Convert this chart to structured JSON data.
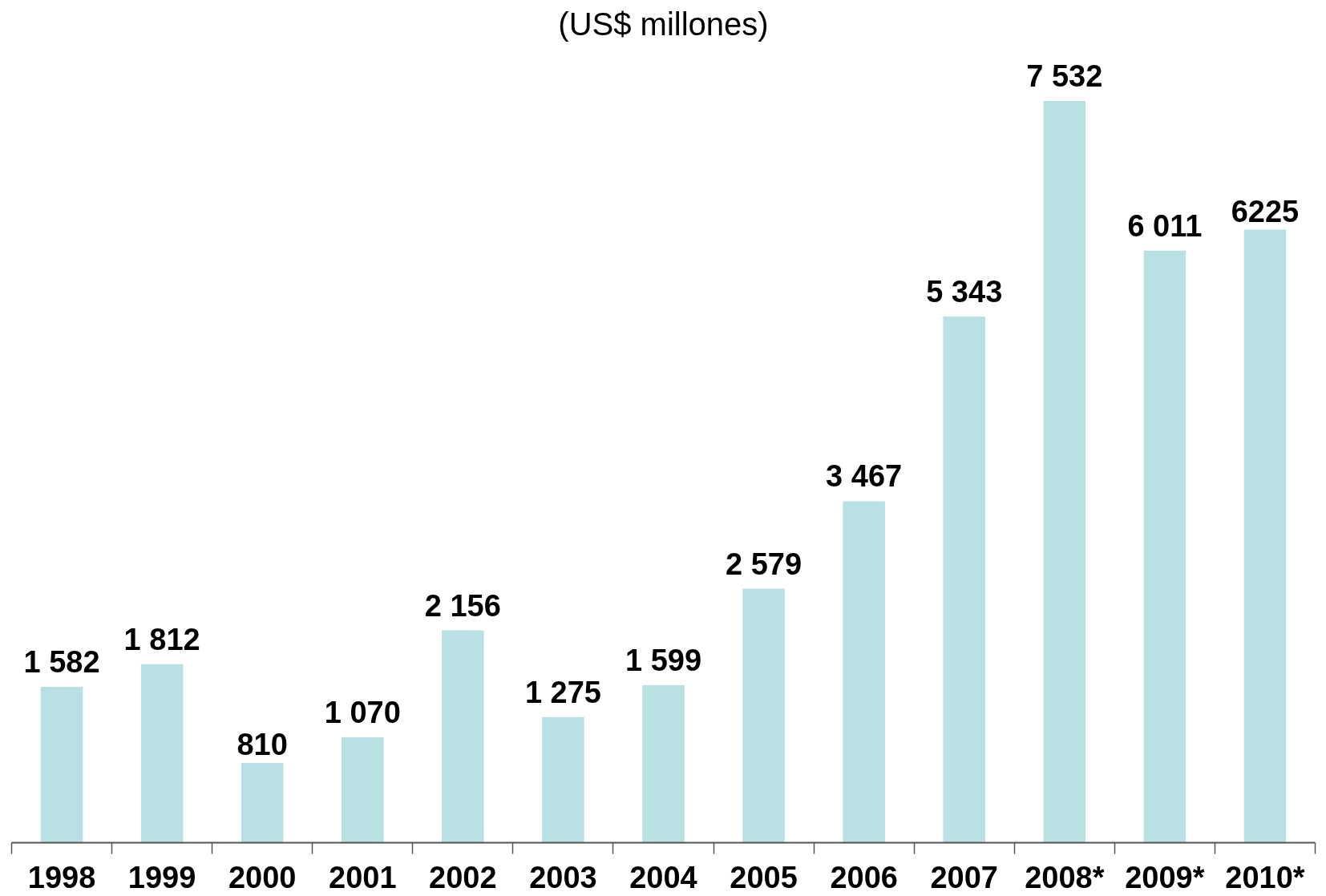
{
  "chart_data": {
    "type": "bar",
    "title": "(US$ millones)",
    "categories": [
      "1998",
      "1999",
      "2000",
      "2001",
      "2002",
      "2003",
      "2004",
      "2005",
      "2006",
      "2007",
      "2008*",
      "2009*",
      "2010*"
    ],
    "values": [
      1582,
      1812,
      810,
      1070,
      2156,
      1275,
      1599,
      2579,
      3467,
      5343,
      7532,
      6011,
      6225
    ],
    "value_labels": [
      "1 582",
      "1 812",
      "810",
      "1 070",
      "2 156",
      "1 275",
      "1 599",
      "2 579",
      "3 467",
      "5 343",
      "7 532",
      "6 011",
      "6225"
    ],
    "color": "#b9e0e3"
  }
}
